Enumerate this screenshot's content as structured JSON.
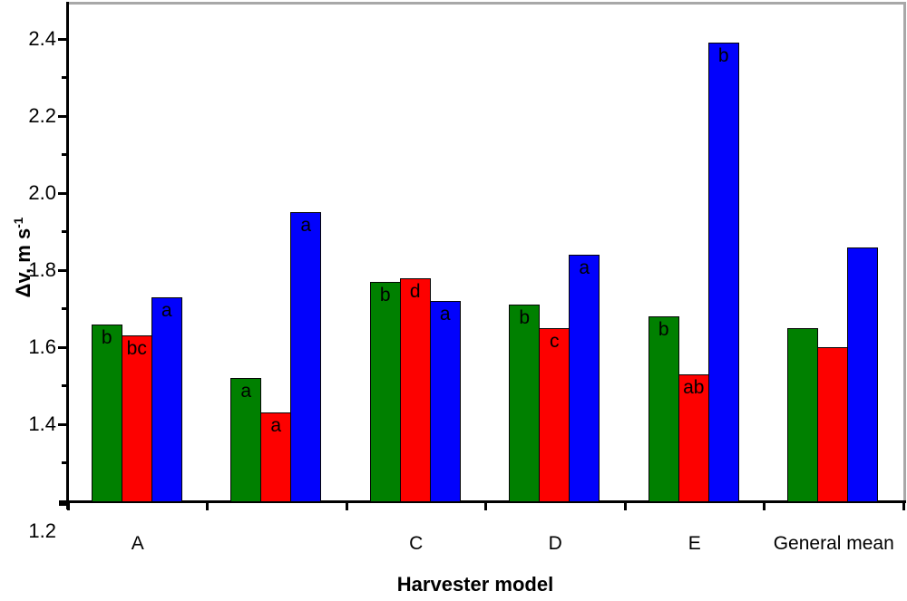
{
  "chart_data": {
    "type": "bar",
    "title": "",
    "xlabel": "Harvester model",
    "ylabel": "Δv, m s⁻¹",
    "ylabel_text": "Δv, m s",
    "ylabel_sup": "-1",
    "categories": [
      "A",
      "",
      "C",
      "D",
      "E",
      "General mean"
    ],
    "series": [
      {
        "name": "green",
        "color": "#008000",
        "values": [
          1.66,
          1.52,
          1.77,
          1.71,
          1.68,
          1.65
        ],
        "bar_labels": [
          "b",
          "a",
          "b",
          "b",
          "b",
          ""
        ]
      },
      {
        "name": "red",
        "color": "#fd0100",
        "values": [
          1.63,
          1.43,
          1.78,
          1.65,
          1.53,
          1.6
        ],
        "bar_labels": [
          "bc",
          "a",
          "d",
          "c",
          "ab",
          ""
        ]
      },
      {
        "name": "blue",
        "color": "#0202fc",
        "values": [
          1.73,
          1.95,
          1.72,
          1.84,
          2.39,
          1.86
        ],
        "bar_labels": [
          "a",
          "a",
          "a",
          "a",
          "b",
          ""
        ]
      }
    ],
    "y_axis": {
      "min": 1.2,
      "max": 2.49,
      "major_ticks": [
        2.4,
        2.2,
        2.0,
        1.8,
        1.6,
        1.4,
        1.2
      ],
      "major_tick_labels": [
        "2.4",
        "2.2",
        "2.0",
        "1.8",
        "1.6",
        "1.4",
        "1.2"
      ],
      "minor_ticks": [
        2.3,
        2.1,
        1.9,
        1.7,
        1.5,
        1.3
      ],
      "grid": false
    },
    "legend": "none",
    "frame_color": "#a8a8a8",
    "axis_color": "#000000",
    "bar_outline_color": "#050505"
  }
}
